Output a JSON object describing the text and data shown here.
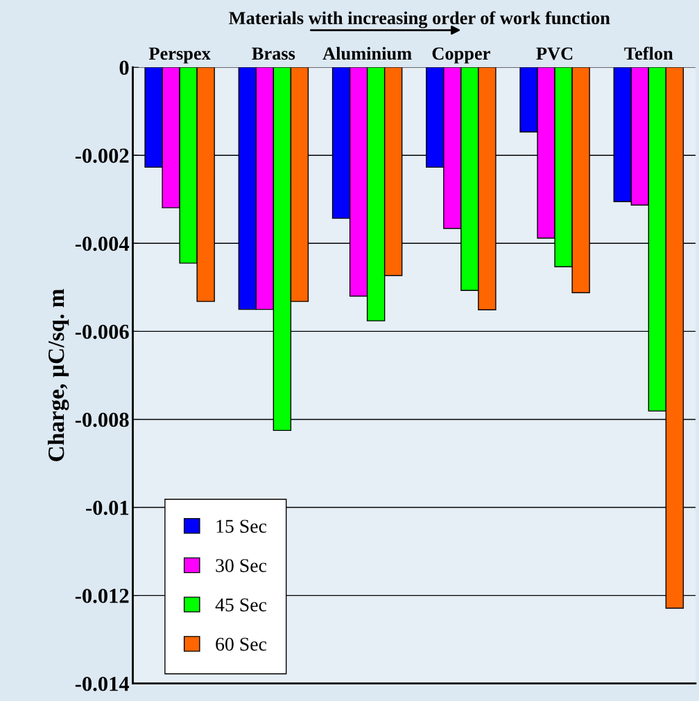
{
  "chart_data": {
    "type": "bar",
    "title": "Materials with increasing order of work function",
    "ylabel": "Charge, µC/sq. m",
    "categories": [
      "Perspex",
      "Brass",
      "Aluminium",
      "Copper",
      "PVC",
      "Teflon"
    ],
    "series": [
      {
        "name": "15 Sec",
        "color": "#0000ff",
        "values": [
          -0.00227,
          -0.0055,
          -0.00343,
          -0.00227,
          -0.00147,
          -0.00305
        ]
      },
      {
        "name": "30 Sec",
        "color": "#ff00ff",
        "values": [
          -0.00319,
          -0.0055,
          -0.0052,
          -0.00366,
          -0.00388,
          -0.00313
        ]
      },
      {
        "name": "45 Sec",
        "color": "#00ff00",
        "values": [
          -0.00445,
          -0.00825,
          -0.00576,
          -0.00507,
          -0.00453,
          -0.00781
        ]
      },
      {
        "name": "60 Sec",
        "color": "#ff6600",
        "values": [
          -0.00532,
          -0.00532,
          -0.00473,
          -0.00551,
          -0.00512,
          -0.01229
        ]
      }
    ],
    "ylim": [
      -0.014,
      0
    ],
    "yticks": [
      0,
      -0.002,
      -0.004,
      -0.006,
      -0.008,
      -0.01,
      -0.012,
      -0.014
    ],
    "grid": "y",
    "legend": "bottom left"
  }
}
